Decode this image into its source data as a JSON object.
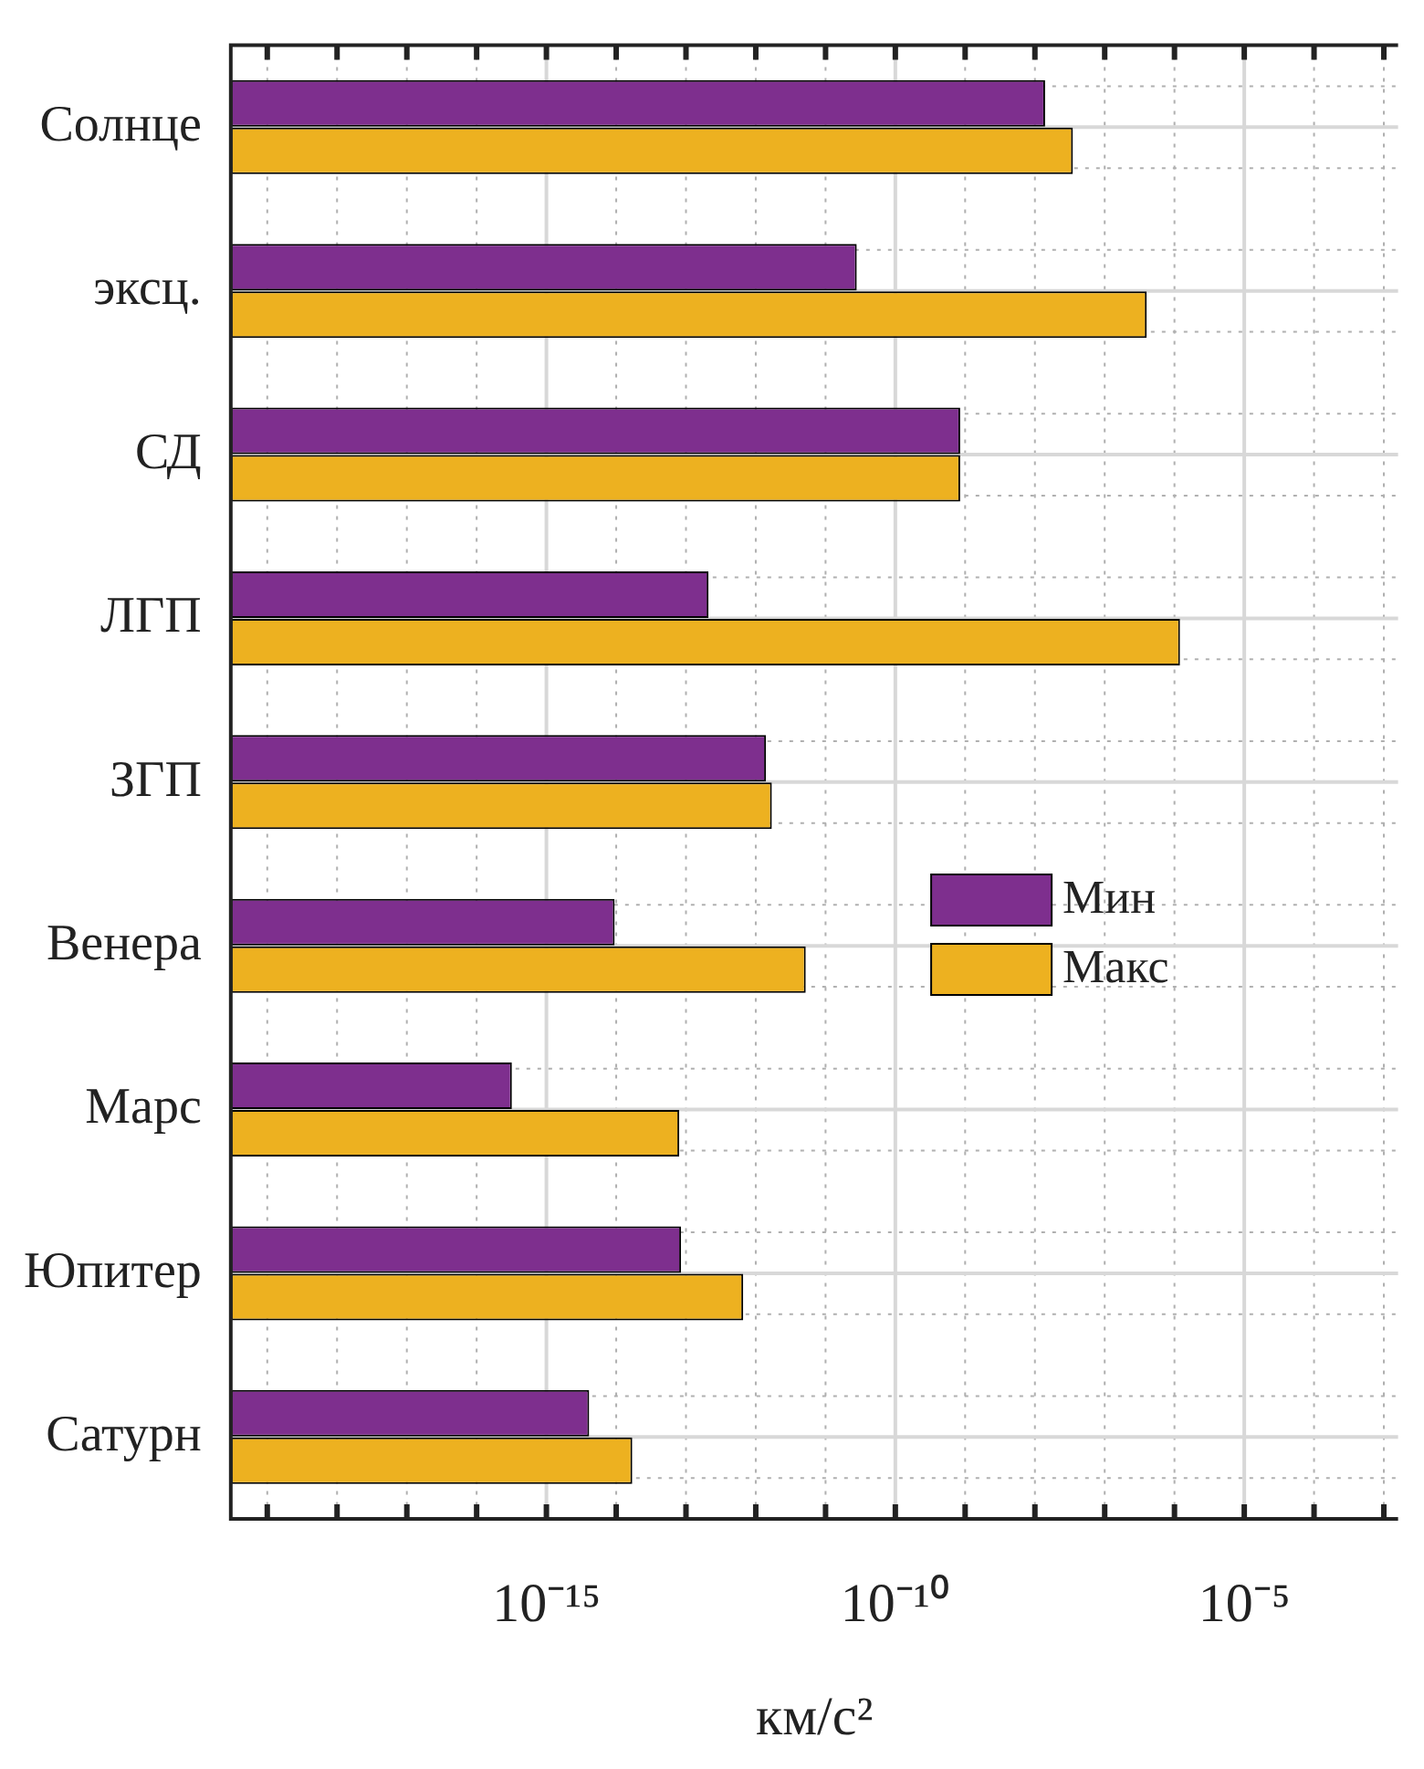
{
  "chart_data": {
    "type": "bar",
    "orientation": "horizontal",
    "log": "x",
    "xlabel": "км/с²",
    "categories": [
      "Солнце",
      "эксц.",
      "СД",
      "ЛГП",
      "ЗГП",
      "Венера",
      "Марс",
      "Юпитер",
      "Сатурн"
    ],
    "series": [
      {
        "name": "Мин",
        "color": "#7e2f8e",
        "values": [
          1.4e-08,
          2.8e-11,
          8.5e-10,
          2.1e-13,
          1.4e-12,
          9.5e-15,
          3.2e-16,
          8.5e-14,
          4.1e-15
        ]
      },
      {
        "name": "Макс",
        "color": "#edb120",
        "values": [
          3.5e-08,
          4e-07,
          8.5e-10,
          1.2e-06,
          1.7e-12,
          5.2e-12,
          8e-14,
          6.6e-13,
          1.7e-14
        ]
      }
    ],
    "xlim": [
      3e-20,
      0.0016
    ],
    "xticks": [
      {
        "value": 1e-19,
        "label": null
      },
      {
        "value": 1e-18,
        "label": null
      },
      {
        "value": 1e-17,
        "label": null
      },
      {
        "value": 1e-16,
        "label": null
      },
      {
        "value": 1e-15,
        "label": "10⁻¹⁵"
      },
      {
        "value": 1e-14,
        "label": null
      },
      {
        "value": 1e-13,
        "label": null
      },
      {
        "value": 1e-12,
        "label": null
      },
      {
        "value": 1e-11,
        "label": null
      },
      {
        "value": 1e-10,
        "label": "10⁻¹⁰"
      },
      {
        "value": 1e-09,
        "label": null
      },
      {
        "value": 1e-08,
        "label": null
      },
      {
        "value": 1e-07,
        "label": null
      },
      {
        "value": 1e-06,
        "label": null
      },
      {
        "value": 1e-05,
        "label": "10⁻⁵"
      },
      {
        "value": 0.0001,
        "label": null
      },
      {
        "value": 0.001,
        "label": null
      }
    ],
    "grid": true,
    "legend": "right"
  }
}
